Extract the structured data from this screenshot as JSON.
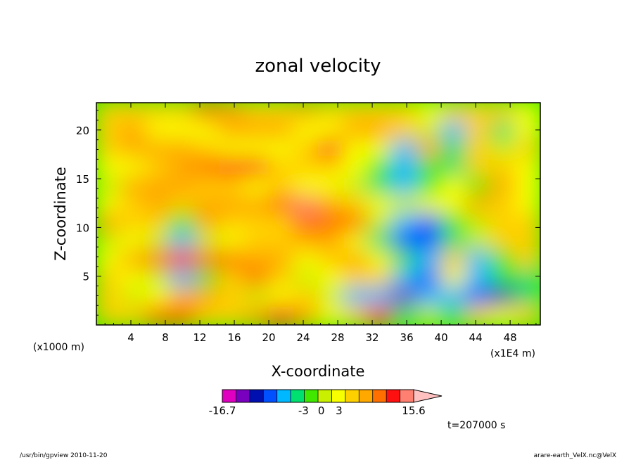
{
  "chart_data": {
    "type": "heatmap",
    "title": "zonal velocity",
    "xlabel": "X-coordinate",
    "ylabel": "Z-coordinate",
    "x_unit_label": "(x1E4 m)",
    "z_unit_label": "(x1000 m)",
    "x_ticks": [
      4,
      8,
      12,
      16,
      20,
      24,
      28,
      32,
      36,
      40,
      44,
      48
    ],
    "y_ticks": [
      5,
      10,
      15,
      20
    ],
    "xlim": [
      0,
      51.5
    ],
    "ylim": [
      0,
      22.8
    ],
    "colorbar": {
      "min": -16.7,
      "max": 15.6,
      "tick_labels": [
        "-16.7",
        "-3",
        "0",
        "3",
        "15.6"
      ],
      "tick_values": [
        -16.7,
        -3,
        0,
        3,
        15.6
      ],
      "colors": [
        "#e000c0",
        "#7a00c0",
        "#0010b0",
        "#0050ff",
        "#00b8ff",
        "#00e070",
        "#40e800",
        "#c8f000",
        "#f8ff00",
        "#ffd000",
        "#ffa800",
        "#ff7000",
        "#ff1010",
        "#ff8070",
        "#ffc0c0"
      ]
    },
    "field": [
      [
        3,
        3,
        3,
        4,
        7,
        5,
        4,
        4,
        5,
        4,
        3,
        4,
        3,
        2,
        4,
        4,
        3,
        2
      ],
      [
        4,
        5,
        2,
        2,
        2,
        6,
        6,
        6,
        1,
        1,
        5,
        5,
        4,
        0,
        -8,
        3,
        -5,
        2
      ],
      [
        3,
        6,
        6,
        6,
        4,
        1,
        1,
        2,
        3,
        10,
        2,
        2,
        -6,
        6,
        -5,
        4,
        0,
        4
      ],
      [
        1,
        1,
        3,
        5,
        9,
        10,
        10,
        4,
        3,
        4,
        2,
        -2,
        -6,
        -2,
        -5,
        4,
        3,
        2
      ],
      [
        0,
        5,
        6,
        5,
        4,
        3,
        2,
        4,
        2,
        1,
        -1,
        -4,
        -7,
        -3,
        1,
        -2,
        5,
        2
      ],
      [
        2,
        4,
        6,
        4,
        5,
        6,
        5,
        8,
        13,
        5,
        4,
        1,
        -1,
        2,
        2,
        6,
        4,
        2
      ],
      [
        5,
        3,
        3,
        -2,
        6,
        3,
        3,
        4,
        7,
        9,
        8,
        0,
        -8,
        -9,
        -2,
        0,
        3,
        4
      ],
      [
        0,
        1,
        -1,
        -6,
        -1,
        2,
        4,
        3,
        5,
        6,
        1,
        -5,
        -10,
        -9,
        -4,
        0,
        4,
        3
      ],
      [
        1,
        5,
        9,
        10,
        9,
        7,
        5,
        5,
        1,
        4,
        6,
        2,
        -3,
        -6,
        3,
        -7,
        -3,
        4
      ],
      [
        3,
        1,
        -1,
        -8,
        -2,
        3,
        7,
        4,
        0,
        2,
        3,
        4,
        -6,
        -10,
        2,
        -8,
        -3,
        -4
      ],
      [
        3,
        0,
        2,
        6,
        5,
        3,
        -1,
        1,
        3,
        0,
        -6,
        -8,
        -14,
        -8,
        -6,
        -9,
        -12,
        -4
      ],
      [
        3,
        3,
        7,
        7,
        4,
        3,
        6,
        10,
        5,
        2,
        4,
        10,
        -5,
        0,
        -4,
        3,
        2,
        4
      ]
    ]
  },
  "footer": {
    "left_text": "/usr/bin/gpview   2010-11-20",
    "time_text": "t=207000  s",
    "right_text": "arare-earth_VelX.nc@VelX"
  }
}
